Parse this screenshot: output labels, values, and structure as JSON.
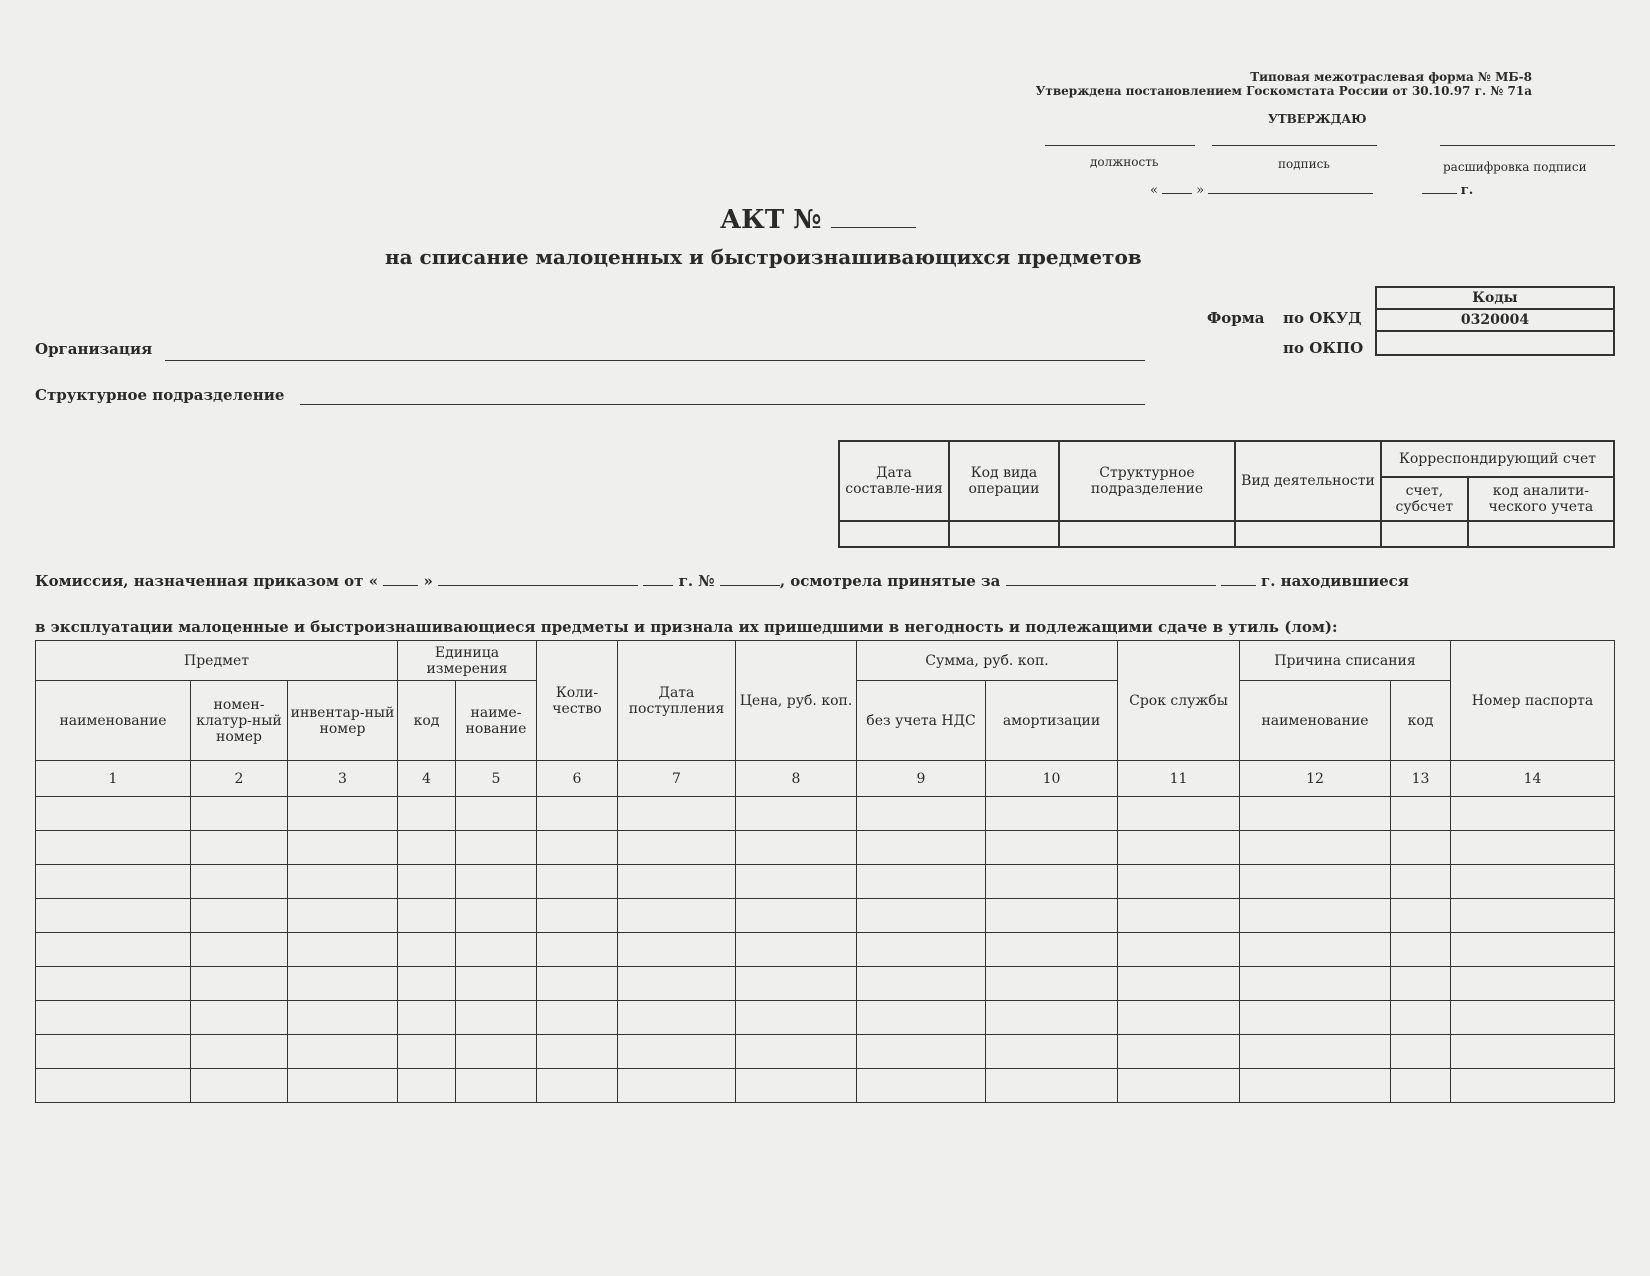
{
  "header": {
    "form_type": "Типовая межотраслевая форма № МБ-8",
    "approved_by": "Утверждена постановлением Госкомстата России от 30.10.97 г. № 71а",
    "approve": "УТВЕРЖДАЮ",
    "position_label": "должность",
    "signature_label": "подпись",
    "decode_label": "расшифровка подписи",
    "date_quote_open": "«",
    "date_quote_close": "»",
    "year_suffix": "г."
  },
  "title": {
    "act_no": "АКТ №",
    "subtitle": "на списание малоценных и быстроизнашивающихся предметов"
  },
  "codes": {
    "header": "Коды",
    "form_label": "Форма",
    "okud_label": "по ОКУД",
    "okud_value": "0320004",
    "okpo_label": "по ОКПО",
    "okpo_value": ""
  },
  "fields": {
    "organization": "Организация",
    "department": "Структурное подразделение"
  },
  "info_table": {
    "columns": [
      "Дата составле-ния",
      "Код вида операции",
      "Структурное подразделение",
      "Вид деятельности"
    ],
    "corr_account": "Корреспондирующий счет",
    "corr_sub": [
      "счет, субсчет",
      "код аналити-ческого учета"
    ]
  },
  "commission": {
    "part1": "Комиссия, назначенная приказом от «",
    "part2": "»",
    "part3": "г. №",
    "part4": ", осмотрела принятые за",
    "part5": "г. находившиеся",
    "line2": "в эксплуатации малоценные и быстроизнашивающиеся предметы и признала их пришедшими в негодность и подлежащими сдаче в утиль (лом):"
  },
  "main_table": {
    "group_item": "Предмет",
    "group_unit": "Единица измерения",
    "quantity": "Коли-чество",
    "receipt_date": "Дата поступления",
    "price": "Цена, руб. коп.",
    "group_sum": "Сумма, руб. коп.",
    "service_life": "Срок службы",
    "group_reason": "Причина списания",
    "passport": "Номер паспорта",
    "item_name": "наименование",
    "item_nom": "номен-клатур-ный номер",
    "item_inv": "инвентар-ный номер",
    "unit_code": "код",
    "unit_name": "наиме-нование",
    "sum_novat": "без учета НДС",
    "sum_amort": "амортизации",
    "reason_name": "наименование",
    "reason_code": "код",
    "numbers": [
      "1",
      "2",
      "3",
      "4",
      "5",
      "6",
      "7",
      "8",
      "9",
      "10",
      "11",
      "12",
      "13",
      "14"
    ]
  }
}
